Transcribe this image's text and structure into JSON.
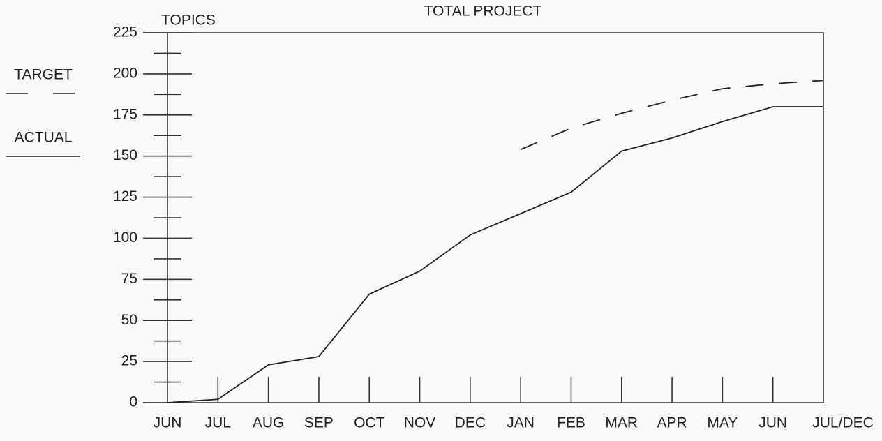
{
  "chart_data": {
    "type": "line",
    "title": "TOTAL PROJECT",
    "ylabel": "TOPICS",
    "categories": [
      "JUN",
      "JUL",
      "AUG",
      "SEP",
      "OCT",
      "NOV",
      "DEC",
      "JAN",
      "FEB",
      "MAR",
      "APR",
      "MAY",
      "JUN",
      "JUL/DEC"
    ],
    "series": [
      {
        "name": "TARGET",
        "color": "#222",
        "style": "dashed",
        "values": [
          null,
          null,
          null,
          null,
          null,
          null,
          null,
          154,
          167,
          176,
          184,
          191,
          194,
          196
        ]
      },
      {
        "name": "ACTUAL",
        "color": "#222",
        "style": "solid",
        "values": [
          0,
          2,
          23,
          28,
          66,
          80,
          102,
          115,
          128,
          153,
          161,
          171,
          180,
          180
        ]
      }
    ],
    "ylim": [
      0,
      225
    ],
    "yticks": [
      0,
      25,
      50,
      75,
      100,
      125,
      150,
      175,
      200,
      225
    ],
    "legend": "left"
  }
}
